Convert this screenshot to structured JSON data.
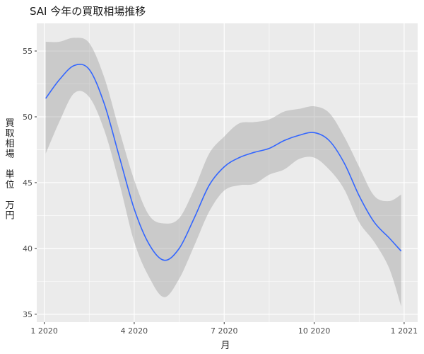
{
  "chart_data": {
    "type": "line",
    "title": "SAI 今年の買取相場推移",
    "xlabel": "月",
    "ylabel_lines": [
      "買",
      "取",
      "相",
      "場",
      "",
      "単",
      "位",
      "",
      "万",
      "円"
    ],
    "x_ticks": [
      {
        "label": "1 2020",
        "x": 1
      },
      {
        "label": "4 2020",
        "x": 4
      },
      {
        "label": "7 2020",
        "x": 7
      },
      {
        "label": "10 2020",
        "x": 10
      },
      {
        "label": "1 2021",
        "x": 13
      }
    ],
    "xlim": [
      0.75,
      13.45
    ],
    "ylim": [
      34.4,
      57.1
    ],
    "y_ticks": [
      35,
      40,
      45,
      50,
      55
    ],
    "grid": true,
    "background_color": "#ebebeb",
    "line_color": "#3366ff",
    "band_color": "#999999",
    "series": [
      {
        "x": [
          1.05,
          1.5,
          2.0,
          2.5,
          3.0,
          3.5,
          4.0,
          4.5,
          5.0,
          5.5,
          6.0,
          6.5,
          7.0,
          7.5,
          8.0,
          8.5,
          9.0,
          9.5,
          10.0,
          10.5,
          11.0,
          11.5,
          12.0,
          12.5,
          12.9
        ],
        "y": [
          51.4,
          52.8,
          53.9,
          53.6,
          51.0,
          47.0,
          43.0,
          40.3,
          39.1,
          40.0,
          42.3,
          44.8,
          46.2,
          46.9,
          47.3,
          47.6,
          48.2,
          48.6,
          48.8,
          48.2,
          46.5,
          44.0,
          42.0,
          40.8,
          39.8
        ],
        "lower": [
          47.2,
          49.6,
          51.8,
          51.5,
          49.0,
          45.0,
          40.5,
          37.8,
          36.3,
          37.7,
          40.2,
          42.8,
          44.4,
          44.8,
          44.9,
          45.6,
          46.0,
          46.8,
          46.9,
          46.0,
          44.5,
          42.0,
          40.5,
          38.5,
          35.6
        ],
        "upper": [
          55.7,
          55.7,
          56.0,
          55.6,
          53.0,
          49.0,
          45.2,
          42.5,
          41.9,
          42.3,
          44.5,
          47.2,
          48.5,
          49.5,
          49.6,
          49.8,
          50.4,
          50.6,
          50.8,
          50.3,
          48.5,
          46.2,
          44.0,
          43.6,
          44.1
        ]
      }
    ]
  }
}
